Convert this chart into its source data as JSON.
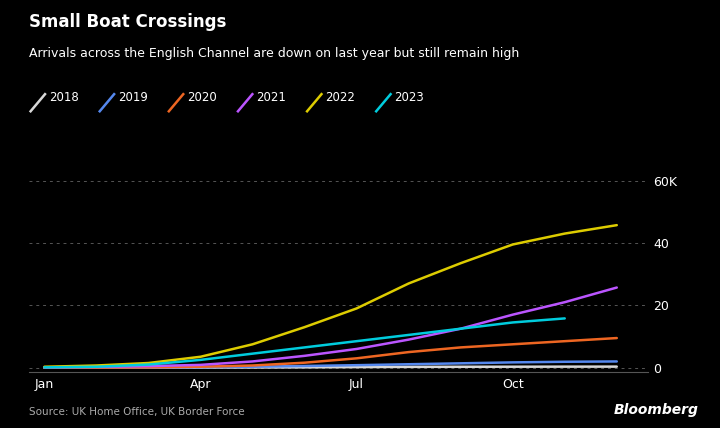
{
  "title": "Small Boat Crossings",
  "subtitle": "Arrivals across the English Channel are down on last year but still remain high",
  "source": "Source: UK Home Office, UK Border Force",
  "background_color": "#000000",
  "text_color": "#ffffff",
  "series": [
    {
      "year": "2018",
      "color": "#d8d8d8",
      "data": [
        0,
        0,
        20,
        30,
        60,
        110,
        190,
        260,
        290,
        310,
        330,
        340
      ]
    },
    {
      "year": "2019",
      "color": "#5588ee",
      "data": [
        0,
        30,
        80,
        150,
        300,
        550,
        800,
        1100,
        1400,
        1700,
        1900,
        2000
      ]
    },
    {
      "year": "2020",
      "color": "#ee6622",
      "data": [
        0,
        30,
        100,
        300,
        700,
        1600,
        3000,
        5000,
        6500,
        7500,
        8500,
        9500
      ]
    },
    {
      "year": "2021",
      "color": "#bb55ff",
      "data": [
        100,
        250,
        500,
        900,
        2000,
        3800,
        6000,
        9000,
        12500,
        17000,
        21000,
        25700
      ]
    },
    {
      "year": "2022",
      "color": "#ddcc00",
      "data": [
        300,
        700,
        1500,
        3500,
        7500,
        13000,
        19000,
        27000,
        33500,
        39500,
        43000,
        45700
      ]
    },
    {
      "year": "2023",
      "color": "#00ccdd",
      "data": [
        100,
        300,
        1000,
        2500,
        4500,
        6500,
        8500,
        10500,
        12500,
        14500,
        15800,
        null
      ]
    }
  ],
  "yticks_values": [
    0,
    20000,
    40000,
    60000
  ],
  "yticks_labels": [
    "0",
    "20",
    "40",
    "60K"
  ],
  "xticks_positions": [
    0,
    3,
    6,
    9
  ],
  "xticks_labels": [
    "Jan",
    "Apr",
    "Jul",
    "Oct"
  ],
  "ylim_min": -1500,
  "ylim_max": 63000,
  "xlim_min": -0.3,
  "xlim_max": 11.6
}
